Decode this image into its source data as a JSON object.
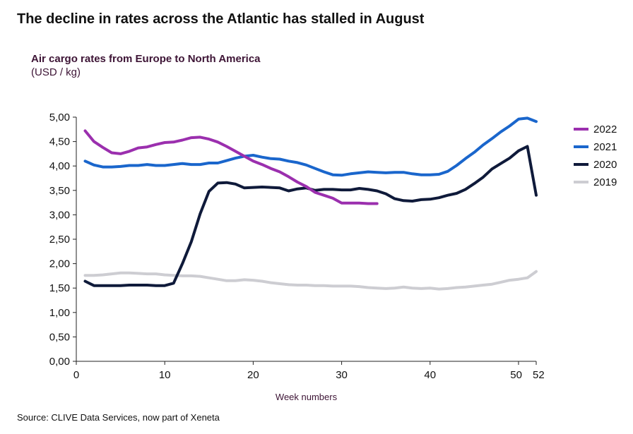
{
  "headline": "The decline in rates across the Atlantic has stalled in August",
  "source": "Source: CLIVE Data Services, now part of Xeneta",
  "chart_data": {
    "type": "line",
    "title": "Air cargo rates from Europe to North America",
    "subtitle": "(USD / kg)",
    "xlabel": "Week numbers",
    "ylabel": "",
    "xlim": [
      0,
      52
    ],
    "ylim": [
      0,
      5
    ],
    "x_ticks": [
      "0",
      "10",
      "20",
      "30",
      "40",
      "50",
      "52"
    ],
    "y_ticks": [
      "0,00",
      "0,50",
      "1,00",
      "1,50",
      "2,00",
      "2,50",
      "3,00",
      "3,50",
      "4,00",
      "4,50",
      "5,00"
    ],
    "grid": false,
    "legend_position": "right",
    "series": [
      {
        "name": "2022",
        "color": "#9b2fae",
        "x": [
          1,
          2,
          3,
          4,
          5,
          6,
          7,
          8,
          9,
          10,
          11,
          12,
          13,
          14,
          15,
          16,
          17,
          18,
          19,
          20,
          21,
          22,
          23,
          24,
          25,
          26,
          27,
          28,
          29,
          30,
          31,
          32,
          33,
          34
        ],
        "values": [
          4.72,
          4.5,
          4.38,
          4.27,
          4.25,
          4.3,
          4.37,
          4.39,
          4.44,
          4.48,
          4.49,
          4.53,
          4.58,
          4.59,
          4.55,
          4.49,
          4.4,
          4.3,
          4.2,
          4.1,
          4.03,
          3.95,
          3.88,
          3.78,
          3.67,
          3.58,
          3.46,
          3.4,
          3.34,
          3.24,
          3.24,
          3.24,
          3.23,
          3.23
        ]
      },
      {
        "name": "2021",
        "color": "#1a66cc",
        "x": [
          1,
          2,
          3,
          4,
          5,
          6,
          7,
          8,
          9,
          10,
          11,
          12,
          13,
          14,
          15,
          16,
          17,
          18,
          19,
          20,
          21,
          22,
          23,
          24,
          25,
          26,
          27,
          28,
          29,
          30,
          31,
          32,
          33,
          34,
          35,
          36,
          37,
          38,
          39,
          40,
          41,
          42,
          43,
          44,
          45,
          46,
          47,
          48,
          49,
          50,
          51,
          52
        ],
        "values": [
          4.1,
          4.02,
          3.98,
          3.98,
          3.99,
          4.01,
          4.01,
          4.03,
          4.01,
          4.01,
          4.03,
          4.05,
          4.03,
          4.03,
          4.06,
          4.06,
          4.11,
          4.16,
          4.2,
          4.22,
          4.18,
          4.15,
          4.14,
          4.1,
          4.07,
          4.02,
          3.95,
          3.88,
          3.82,
          3.81,
          3.84,
          3.86,
          3.88,
          3.87,
          3.86,
          3.87,
          3.87,
          3.84,
          3.82,
          3.82,
          3.83,
          3.89,
          4.01,
          4.15,
          4.28,
          4.43,
          4.56,
          4.7,
          4.82,
          4.96,
          4.98,
          4.91
        ]
      },
      {
        "name": "2020",
        "color": "#0f1a3a",
        "x": [
          1,
          2,
          3,
          4,
          5,
          6,
          7,
          8,
          9,
          10,
          11,
          12,
          13,
          14,
          15,
          16,
          17,
          18,
          19,
          20,
          21,
          22,
          23,
          24,
          25,
          26,
          27,
          28,
          29,
          30,
          31,
          32,
          33,
          34,
          35,
          36,
          37,
          38,
          39,
          40,
          41,
          42,
          43,
          44,
          45,
          46,
          47,
          48,
          49,
          50,
          51,
          52
        ],
        "values": [
          1.64,
          1.55,
          1.55,
          1.55,
          1.55,
          1.56,
          1.56,
          1.56,
          1.55,
          1.55,
          1.6,
          2.0,
          2.45,
          3.02,
          3.48,
          3.65,
          3.66,
          3.63,
          3.55,
          3.56,
          3.57,
          3.56,
          3.55,
          3.49,
          3.53,
          3.55,
          3.5,
          3.52,
          3.52,
          3.51,
          3.51,
          3.54,
          3.52,
          3.49,
          3.43,
          3.33,
          3.29,
          3.28,
          3.31,
          3.32,
          3.35,
          3.4,
          3.44,
          3.52,
          3.64,
          3.77,
          3.94,
          4.05,
          4.16,
          4.31,
          4.4,
          3.4
        ]
      },
      {
        "name": "2019",
        "color": "#cdcdd2",
        "x": [
          1,
          2,
          3,
          4,
          5,
          6,
          7,
          8,
          9,
          10,
          11,
          12,
          13,
          14,
          15,
          16,
          17,
          18,
          19,
          20,
          21,
          22,
          23,
          24,
          25,
          26,
          27,
          28,
          29,
          30,
          31,
          32,
          33,
          34,
          35,
          36,
          37,
          38,
          39,
          40,
          41,
          42,
          43,
          44,
          45,
          46,
          47,
          48,
          49,
          50,
          51,
          52
        ],
        "values": [
          1.76,
          1.76,
          1.77,
          1.79,
          1.81,
          1.81,
          1.8,
          1.79,
          1.79,
          1.77,
          1.76,
          1.75,
          1.75,
          1.74,
          1.71,
          1.68,
          1.65,
          1.65,
          1.67,
          1.66,
          1.64,
          1.61,
          1.59,
          1.57,
          1.56,
          1.56,
          1.55,
          1.55,
          1.54,
          1.54,
          1.54,
          1.53,
          1.51,
          1.5,
          1.49,
          1.5,
          1.52,
          1.5,
          1.49,
          1.5,
          1.48,
          1.49,
          1.51,
          1.52,
          1.54,
          1.56,
          1.58,
          1.62,
          1.66,
          1.68,
          1.71,
          1.84
        ]
      }
    ]
  }
}
